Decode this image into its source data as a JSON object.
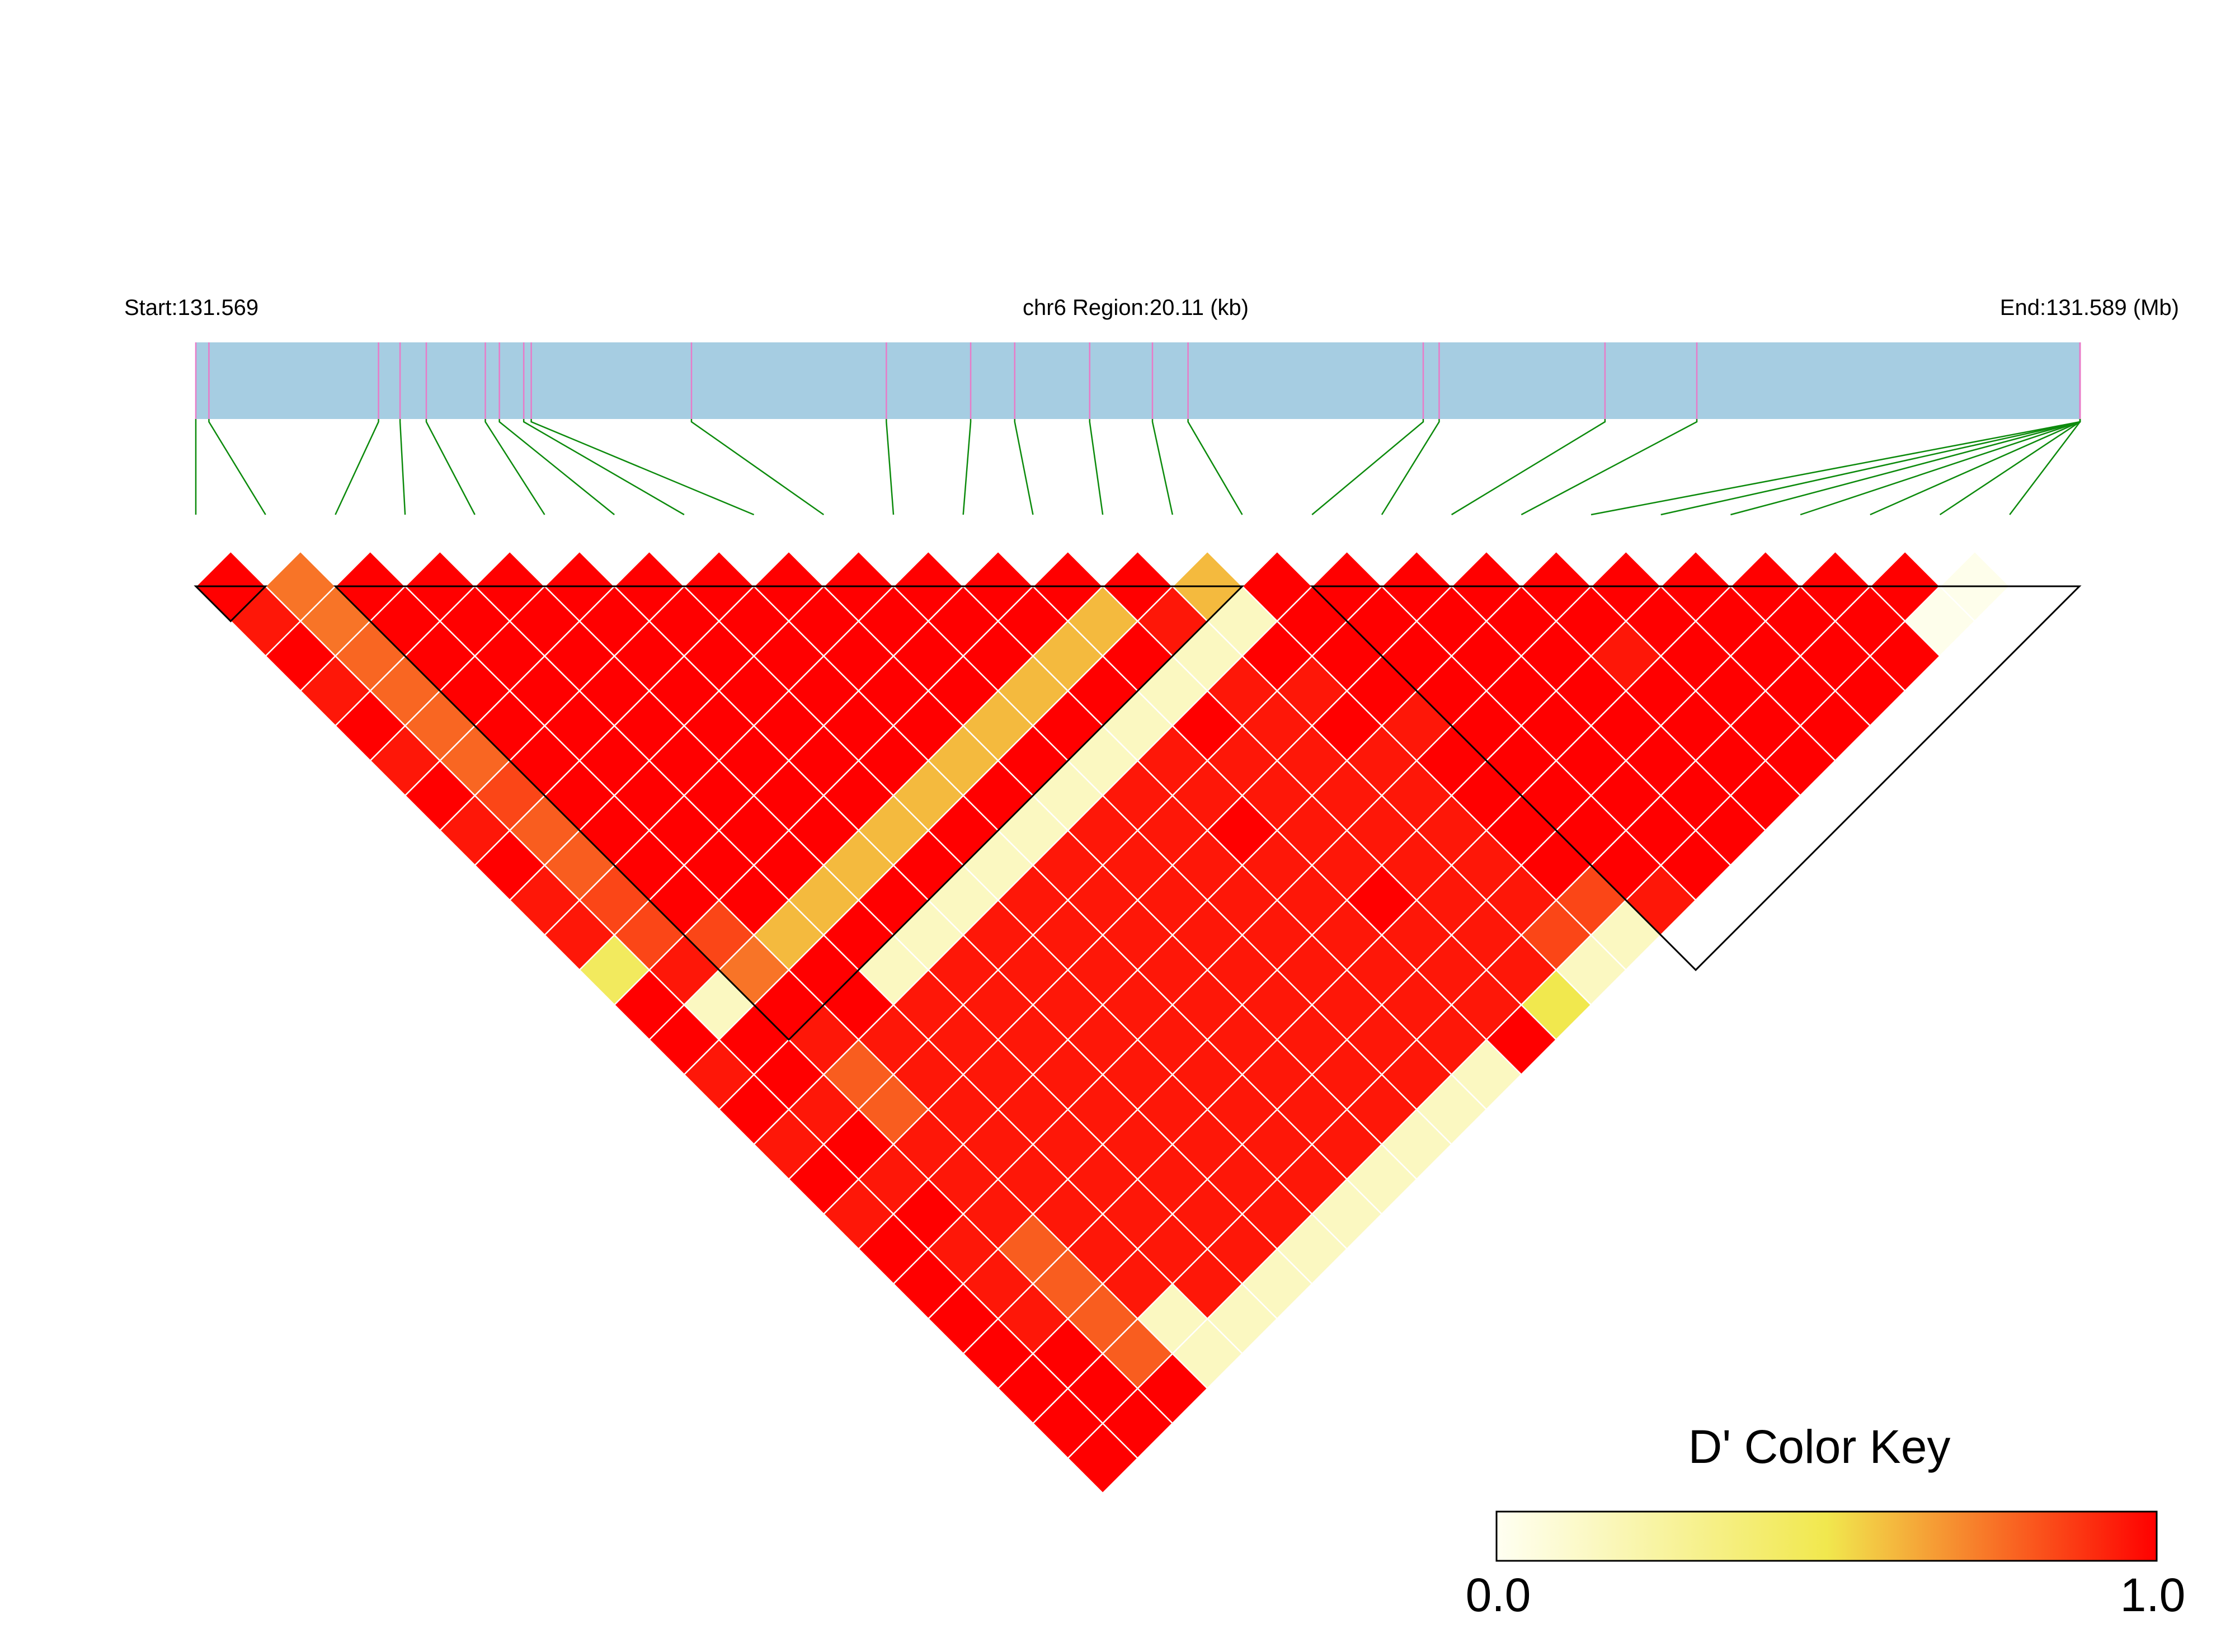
{
  "header": {
    "start_label": "Start:131.569",
    "region_label": "chr6 Region:20.11 (kb)",
    "end_label": "End:131.589 (Mb)"
  },
  "color_key": {
    "title": "D' Color Key",
    "min_label": "0.0",
    "max_label": "1.0"
  },
  "colors": {
    "track_fill": "#a6cde2",
    "snp_tick": "#e87bc8",
    "marker_line": "#0c8a0c",
    "block_outline": "#000000",
    "cell_gap": "#ffffff",
    "scale_low": "#fffff2",
    "scale_mid": "#f1e84e",
    "scale_high": "#ff0000"
  },
  "chart_data": {
    "type": "heatmap",
    "title": "",
    "region": {
      "chromosome": "chr6",
      "start_mb": 131.569,
      "end_mb": 131.589,
      "length_kb": 20.11
    },
    "n_snps": 27,
    "snp_positions_kb": [
      0,
      0.14,
      1.95,
      2.18,
      2.46,
      3.09,
      3.24,
      3.5,
      3.58,
      5.29,
      7.37,
      8.27,
      8.74,
      9.54,
      10.21,
      10.59,
      13.1,
      13.27,
      15.04,
      16.02,
      20.11,
      20.11,
      20.11,
      20.11,
      20.11,
      20.11,
      20.11
    ],
    "metric": "D'",
    "scale_range": [
      0.0,
      1.0
    ],
    "ld_blocks": [
      [
        0,
        0
      ],
      [
        2,
        14
      ],
      [
        16,
        26
      ]
    ],
    "d_prime_rows_by_distance": [
      [
        1.0,
        0.75,
        1.0,
        1.0,
        1.0,
        1.0,
        1.0,
        1.0,
        1.0,
        1.0,
        1.0,
        1.0,
        1.0,
        1.0,
        0.6,
        1.0,
        1.0,
        1.0,
        1.0,
        1.0,
        1.0,
        1.0,
        1.0,
        1.0,
        1.0,
        0.02
      ],
      [
        0.95,
        0.75,
        1.0,
        1.0,
        1.0,
        1.0,
        1.0,
        1.0,
        1.0,
        1.0,
        1.0,
        1.0,
        0.6,
        0.95,
        0.15,
        1.0,
        1.0,
        1.0,
        1.0,
        1.0,
        1.0,
        1.0,
        1.0,
        1.0,
        0.02
      ],
      [
        1.0,
        0.78,
        1.0,
        1.0,
        1.0,
        1.0,
        1.0,
        1.0,
        1.0,
        1.0,
        1.0,
        0.6,
        1.0,
        0.15,
        1.0,
        1.0,
        1.0,
        1.0,
        1.0,
        0.95,
        1.0,
        1.0,
        1.0,
        1.0
      ],
      [
        0.95,
        0.78,
        1.0,
        1.0,
        1.0,
        1.0,
        1.0,
        1.0,
        1.0,
        1.0,
        0.6,
        1.0,
        0.15,
        0.95,
        0.95,
        1.0,
        1.0,
        1.0,
        1.0,
        1.0,
        1.0,
        1.0,
        1.0
      ],
      [
        1.0,
        0.78,
        1.0,
        1.0,
        1.0,
        1.0,
        1.0,
        1.0,
        1.0,
        0.6,
        1.0,
        0.15,
        1.0,
        0.95,
        1.0,
        0.95,
        1.0,
        1.0,
        1.0,
        1.0,
        1.0,
        1.0
      ],
      [
        0.95,
        0.78,
        1.0,
        1.0,
        1.0,
        1.0,
        1.0,
        1.0,
        0.6,
        1.0,
        0.15,
        0.95,
        0.95,
        0.95,
        0.95,
        1.0,
        1.0,
        1.0,
        1.0,
        1.0,
        1.0
      ],
      [
        1.0,
        0.85,
        1.0,
        1.0,
        1.0,
        1.0,
        1.0,
        0.6,
        1.0,
        0.15,
        0.95,
        0.95,
        0.95,
        0.95,
        0.95,
        1.0,
        1.0,
        1.0,
        1.0,
        1.0
      ],
      [
        0.95,
        0.8,
        1.0,
        1.0,
        1.0,
        1.0,
        0.6,
        1.0,
        0.15,
        0.95,
        0.95,
        1.0,
        0.95,
        0.95,
        0.95,
        1.0,
        1.0,
        1.0,
        1.0
      ],
      [
        1.0,
        0.8,
        1.0,
        1.0,
        1.0,
        0.6,
        1.0,
        0.15,
        0.95,
        0.95,
        0.95,
        0.95,
        0.95,
        0.95,
        0.95,
        1.0,
        1.0,
        1.0
      ],
      [
        0.95,
        0.85,
        1.0,
        1.0,
        0.6,
        1.0,
        0.15,
        0.95,
        0.95,
        0.95,
        0.95,
        0.95,
        1.0,
        0.95,
        0.95,
        0.85,
        0.95
      ],
      [
        0.95,
        0.85,
        0.85,
        0.6,
        1.0,
        0.15,
        0.95,
        0.95,
        0.95,
        0.95,
        0.95,
        0.95,
        0.95,
        0.95,
        0.85,
        0.15
      ],
      [
        0.45,
        0.95,
        0.75,
        1.0,
        0.15,
        0.95,
        0.95,
        0.95,
        0.95,
        0.95,
        0.95,
        0.95,
        0.95,
        0.95,
        0.15
      ],
      [
        1.0,
        0.15,
        1.0,
        1.0,
        0.95,
        0.95,
        0.95,
        0.95,
        0.95,
        0.95,
        0.95,
        0.95,
        0.95,
        0.5
      ],
      [
        1.0,
        1.0,
        0.95,
        0.95,
        0.95,
        0.95,
        0.95,
        0.95,
        0.95,
        0.95,
        0.95,
        0.95,
        1.0
      ],
      [
        0.95,
        1.0,
        0.8,
        0.95,
        0.95,
        0.95,
        0.95,
        0.95,
        0.95,
        0.95,
        0.95,
        0.15
      ],
      [
        1.0,
        0.95,
        0.8,
        0.95,
        0.95,
        0.95,
        0.95,
        0.95,
        0.95,
        0.95,
        0.15
      ],
      [
        0.95,
        1.0,
        0.95,
        0.95,
        0.95,
        0.95,
        0.95,
        0.95,
        0.95,
        0.15
      ],
      [
        1.0,
        0.95,
        0.95,
        0.95,
        0.95,
        0.95,
        0.95,
        0.95,
        0.15
      ],
      [
        0.95,
        1.0,
        0.95,
        0.95,
        0.95,
        0.95,
        0.95,
        0.15
      ],
      [
        1.0,
        0.95,
        0.8,
        0.95,
        0.95,
        0.95,
        0.15
      ],
      [
        1.0,
        0.95,
        0.8,
        0.95,
        0.95,
        0.15
      ],
      [
        1.0,
        0.95,
        0.8,
        0.15,
        0.15
      ],
      [
        1.0,
        1.0,
        0.8,
        0.15
      ],
      [
        1.0,
        1.0,
        1.0
      ],
      [
        1.0,
        1.0
      ],
      [
        1.0
      ]
    ]
  }
}
